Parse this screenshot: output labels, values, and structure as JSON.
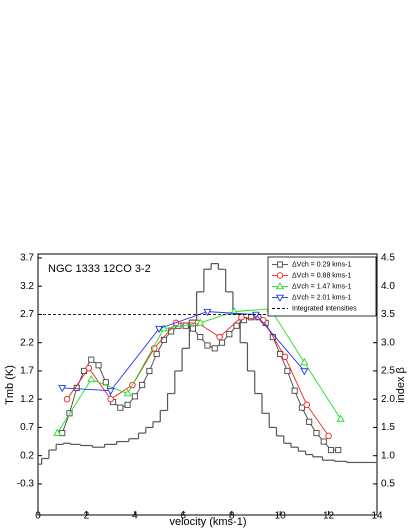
{
  "chart_data": {
    "type": "line",
    "title": "NGC 1333 12CO 3-2",
    "x_label": "velocity (kms-1)",
    "y_label": "Tmb (K)",
    "y2_label": "index β",
    "xlim": [
      0,
      14
    ],
    "xticks": [
      0,
      2,
      4,
      6,
      8,
      10,
      12,
      14
    ],
    "ylim": [
      -0.85,
      3.77
    ],
    "yticks": [
      -0.3,
      0.2,
      0.7,
      1.2,
      1.7,
      2.2,
      2.7,
      3.2,
      3.7
    ],
    "y2lim": [
      -0.05,
      4.57
    ],
    "y2ticks": [
      0.5,
      {
        "value": 1,
        "label": "1.0"
      },
      1.5,
      {
        "value": 2,
        "label": "2.0"
      },
      2.5,
      {
        "value": 3,
        "label": "3.0"
      },
      3.5,
      {
        "value": 4,
        "label": "4.0"
      },
      4.5
    ],
    "legend": "upper right",
    "series": [
      {
        "color": "#555555",
        "drawstyle": "steps-mid",
        "x": [
          0,
          0.3,
          0.6,
          0.9,
          1.2,
          1.5,
          2,
          2.5,
          3,
          3.5,
          4,
          4.3,
          4.6,
          4.9,
          5.2,
          5.5,
          5.8,
          6.1,
          6.4,
          6.7,
          7.0,
          7.3,
          7.6,
          7.9,
          8.2,
          8.5,
          8.8,
          9.1,
          9.4,
          9.7,
          10.0,
          10.3,
          10.6,
          10.9,
          11.2,
          11.5,
          12,
          12.5,
          13,
          13.5,
          14
        ],
        "values": [
          0.05,
          0.15,
          0.3,
          0.4,
          0.42,
          0.4,
          0.38,
          0.35,
          0.4,
          0.45,
          0.5,
          0.6,
          0.7,
          0.8,
          1.0,
          1.3,
          1.7,
          2.1,
          2.6,
          3.1,
          3.5,
          3.6,
          3.5,
          3.1,
          2.7,
          2.2,
          1.7,
          1.3,
          0.95,
          0.7,
          0.55,
          0.42,
          0.35,
          0.28,
          0.22,
          0.18,
          0.12,
          0.1,
          0.08,
          0.08,
          0.08
        ]
      },
      {
        "name": "ΔVch = 0.29 kms-1",
        "color": "#444444",
        "marker": "square",
        "x": [
          1.0,
          1.3,
          1.6,
          1.9,
          2.2,
          2.5,
          2.8,
          3.1,
          3.4,
          3.7,
          4.0,
          4.3,
          4.6,
          4.9,
          5.2,
          5.5,
          5.8,
          6.1,
          6.4,
          6.7,
          7.0,
          7.3,
          7.6,
          7.9,
          8.2,
          8.5,
          8.8,
          9.1,
          9.4,
          9.7,
          10.0,
          10.3,
          10.6,
          10.9,
          11.2,
          11.5,
          11.8,
          12.1,
          12.4
        ],
        "values": [
          0.6,
          0.95,
          1.4,
          1.7,
          1.9,
          1.8,
          1.5,
          1.15,
          1.05,
          1.1,
          1.25,
          1.45,
          1.7,
          2.0,
          2.25,
          2.4,
          2.5,
          2.5,
          2.45,
          2.3,
          2.15,
          2.1,
          2.2,
          2.35,
          2.5,
          2.6,
          2.65,
          2.65,
          2.55,
          2.3,
          2.0,
          1.7,
          1.35,
          1.05,
          0.8,
          0.6,
          0.45,
          0.3,
          0.3
        ]
      },
      {
        "name": "ΔVch = 0.88 kms-1",
        "color": "#ee2222",
        "marker": "circle",
        "x": [
          1.2,
          2.1,
          3.0,
          3.9,
          4.8,
          5.7,
          6.6,
          7.5,
          8.4,
          9.3,
          10.2,
          11.1,
          12.0
        ],
        "values": [
          1.2,
          1.75,
          1.2,
          1.45,
          2.1,
          2.55,
          2.55,
          2.3,
          2.65,
          2.6,
          1.95,
          1.1,
          0.55
        ]
      },
      {
        "name": "ΔVch = 1.47 kms-1",
        "color": "#22dd22",
        "marker": "triangle-up",
        "x": [
          0.8,
          2.2,
          3.7,
          5.2,
          6.7,
          8.1,
          9.6,
          11.0,
          12.5
        ],
        "values": [
          0.6,
          1.55,
          1.3,
          2.45,
          2.55,
          2.75,
          2.8,
          1.85,
          0.85
        ]
      },
      {
        "name": "ΔVch = 2.01 kms-1",
        "color": "#2233ee",
        "marker": "triangle-down",
        "x": [
          1.0,
          3.0,
          5.0,
          7.0,
          9.0,
          11.0
        ],
        "values": [
          1.4,
          1.35,
          2.45,
          2.75,
          2.7,
          1.7
        ]
      },
      {
        "name": "Integrated intensities",
        "color": "#000000",
        "linestyle": "dashed",
        "x": [
          0,
          14
        ],
        "values": [
          2.7,
          2.7
        ]
      }
    ]
  }
}
